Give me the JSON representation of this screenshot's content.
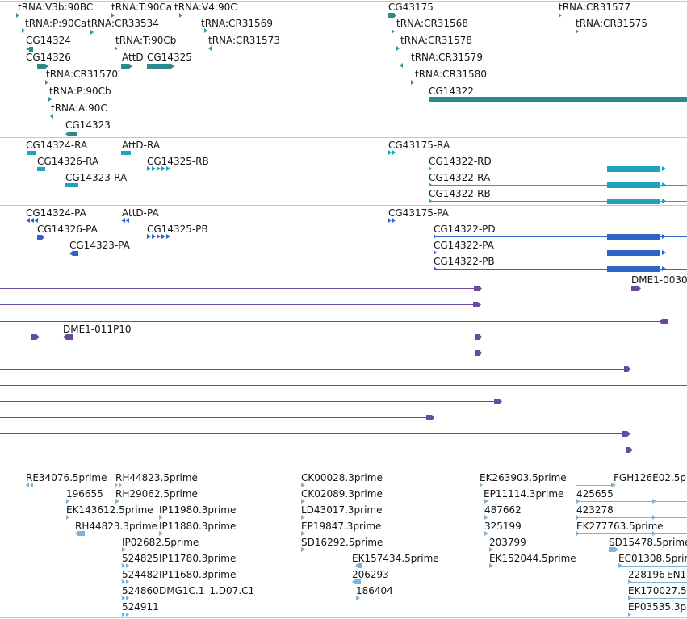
{
  "colors": {
    "trna": "#2f95a3",
    "gene": "#2a8a8c",
    "transcript": "#1fa2bb",
    "protein": "#2f63c8",
    "oligo": "#6a4a9c",
    "est": "#7bb4da",
    "separator": "#c7c7c7"
  },
  "gene_track": {
    "labels": [
      "tRNA:V3b:90BC",
      "tRNA:T:90Ca",
      "tRNA:V4:90C",
      "tRNA:P:90Ca",
      "tRNA:CR33534",
      "tRNA:CR31569",
      "CG14324",
      "tRNA:T:90Cb",
      "tRNA:CR31573",
      "CG14326",
      "AttD",
      "CG14325",
      "tRNA:CR31570",
      "tRNA:P:90Cb",
      "tRNA:A:90C",
      "CG14323",
      "CG43175",
      "tRNA:CR31577",
      "tRNA:CR31568",
      "tRNA:CR31575",
      "tRNA:CR31578",
      "tRNA:CR31579",
      "tRNA:CR31580",
      "CG14322"
    ]
  },
  "transcript_track": {
    "labels": [
      "CG14324-RA",
      "AttD-RA",
      "CG43175-RA",
      "CG14326-RA",
      "CG14325-RB",
      "CG14322-RD",
      "CG14323-RA",
      "CG14322-RA",
      "CG14322-RB"
    ]
  },
  "protein_track": {
    "labels": [
      "CG14324-PA",
      "AttD-PA",
      "CG43175-PA",
      "CG14326-PA",
      "CG14325-PB",
      "CG14322-PD",
      "CG14323-PA",
      "CG14322-PA",
      "CG14322-PB"
    ]
  },
  "oligo_track": {
    "labels": [
      "DME1-0030",
      "DME1-011P10"
    ]
  },
  "est_track": {
    "labels": [
      "RE34076.5prime",
      "RH44823.5prime",
      "CK00028.3prime",
      "EK263903.5prime",
      "FGH126E02.5p",
      "196655",
      "RH29062.5prime",
      "CK02089.3prime",
      "EP11114.3prime",
      "425655",
      "EK143612.5prime",
      "IP11980.3prime",
      "LD43017.3prime",
      "487662",
      "423278",
      "RH44823.3prime",
      "IP11880.3prime",
      "EP19847.3prime",
      "325199",
      "EK277763.5prime",
      "IP02682.5prime",
      "SD16292.5prime",
      "203799",
      "SD15478.5prime",
      "524825",
      "IP11780.3prime",
      "EK157434.5prime",
      "EK152044.5prime",
      "EC01308.5prim",
      "524482",
      "IP11680.3prime",
      "206293",
      "228196",
      "EN1",
      "524860",
      "DMG1C.1_1.D07.C1",
      "186404",
      "EK170027.5",
      "524911",
      "EP03535.3p"
    ]
  }
}
